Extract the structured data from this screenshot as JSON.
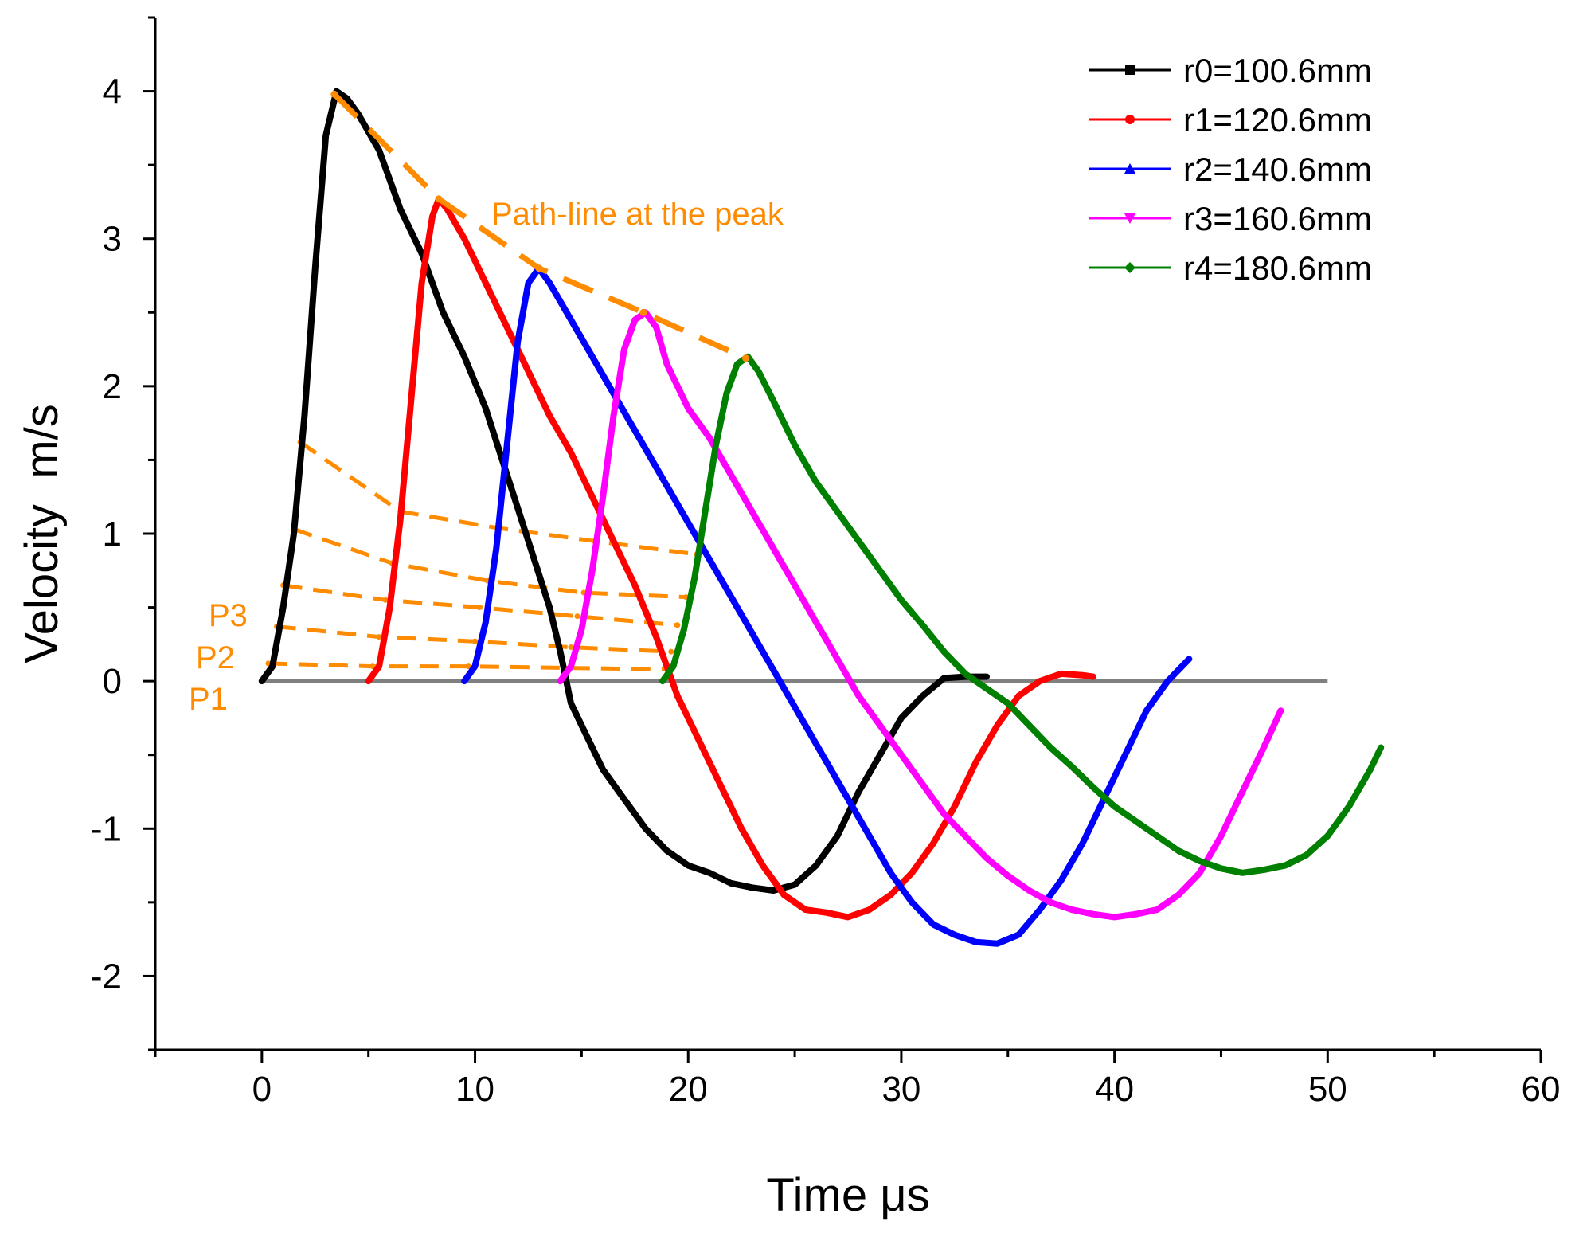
{
  "chart_data": {
    "type": "line",
    "title": "",
    "xlabel": "Time μs",
    "ylabel": "Velocity  m/s",
    "xlim": [
      -5,
      60
    ],
    "ylim": [
      -2.5,
      4.5
    ],
    "x_ticks": [
      0,
      10,
      20,
      30,
      40,
      50,
      60
    ],
    "y_ticks": [
      -2,
      -1,
      0,
      1,
      2,
      3,
      4
    ],
    "x_tick_labels": [
      "0",
      "10",
      "20",
      "30",
      "40",
      "50",
      "60"
    ],
    "y_tick_labels": [
      "-2",
      "-1",
      "0",
      "1",
      "2",
      "3",
      "4"
    ],
    "legend_position": "top-right",
    "series": [
      {
        "name": "r0=100.6mm",
        "color": "#000000",
        "marker": "square",
        "points": [
          [
            0,
            0
          ],
          [
            0.5,
            0.1
          ],
          [
            1.0,
            0.5
          ],
          [
            1.5,
            1.0
          ],
          [
            2.0,
            1.8
          ],
          [
            2.5,
            2.8
          ],
          [
            3.0,
            3.7
          ],
          [
            3.5,
            4.0
          ],
          [
            4.0,
            3.95
          ],
          [
            4.5,
            3.85
          ],
          [
            5.5,
            3.6
          ],
          [
            6.5,
            3.2
          ],
          [
            7.5,
            2.9
          ],
          [
            8.5,
            2.5
          ],
          [
            9.5,
            2.2
          ],
          [
            10.5,
            1.85
          ],
          [
            11.5,
            1.4
          ],
          [
            12.5,
            0.95
          ],
          [
            13.5,
            0.5
          ],
          [
            14.0,
            0.2
          ],
          [
            14.5,
            -0.15
          ],
          [
            15.0,
            -0.3
          ],
          [
            16.0,
            -0.6
          ],
          [
            17.0,
            -0.8
          ],
          [
            18.0,
            -1.0
          ],
          [
            19.0,
            -1.15
          ],
          [
            20.0,
            -1.25
          ],
          [
            21.0,
            -1.3
          ],
          [
            22.0,
            -1.37
          ],
          [
            23.0,
            -1.4
          ],
          [
            24.0,
            -1.42
          ],
          [
            25.0,
            -1.38
          ],
          [
            26.0,
            -1.25
          ],
          [
            27.0,
            -1.05
          ],
          [
            28.0,
            -0.75
          ],
          [
            29.0,
            -0.5
          ],
          [
            30.0,
            -0.25
          ],
          [
            31.0,
            -0.1
          ],
          [
            32.0,
            0.02
          ],
          [
            33.0,
            0.03
          ],
          [
            34.0,
            0.03
          ]
        ]
      },
      {
        "name": "r1=120.6mm",
        "color": "#ff0000",
        "marker": "circle",
        "points": [
          [
            5,
            0
          ],
          [
            5.5,
            0.1
          ],
          [
            6.0,
            0.5
          ],
          [
            6.5,
            1.1
          ],
          [
            7.0,
            1.9
          ],
          [
            7.5,
            2.7
          ],
          [
            8.0,
            3.15
          ],
          [
            8.3,
            3.27
          ],
          [
            8.7,
            3.2
          ],
          [
            9.5,
            3.0
          ],
          [
            10.5,
            2.7
          ],
          [
            11.5,
            2.4
          ],
          [
            12.5,
            2.1
          ],
          [
            13.5,
            1.8
          ],
          [
            14.5,
            1.55
          ],
          [
            15.5,
            1.25
          ],
          [
            16.5,
            0.95
          ],
          [
            17.5,
            0.65
          ],
          [
            18.5,
            0.3
          ],
          [
            19.5,
            -0.1
          ],
          [
            20.5,
            -0.4
          ],
          [
            21.5,
            -0.7
          ],
          [
            22.5,
            -1.0
          ],
          [
            23.5,
            -1.25
          ],
          [
            24.5,
            -1.45
          ],
          [
            25.5,
            -1.55
          ],
          [
            26.5,
            -1.57
          ],
          [
            27.5,
            -1.6
          ],
          [
            28.5,
            -1.55
          ],
          [
            29.5,
            -1.45
          ],
          [
            30.5,
            -1.3
          ],
          [
            31.5,
            -1.1
          ],
          [
            32.5,
            -0.85
          ],
          [
            33.5,
            -0.55
          ],
          [
            34.5,
            -0.3
          ],
          [
            35.5,
            -0.1
          ],
          [
            36.5,
            0.0
          ],
          [
            37.5,
            0.05
          ],
          [
            38.5,
            0.04
          ],
          [
            39.0,
            0.03
          ]
        ]
      },
      {
        "name": "r2=140.6mm",
        "color": "#0000ff",
        "marker": "triangle",
        "points": [
          [
            9.5,
            0
          ],
          [
            10.0,
            0.1
          ],
          [
            10.5,
            0.4
          ],
          [
            11.0,
            0.9
          ],
          [
            11.5,
            1.6
          ],
          [
            12.0,
            2.3
          ],
          [
            12.5,
            2.7
          ],
          [
            13.0,
            2.8
          ],
          [
            13.5,
            2.7
          ],
          [
            14.5,
            2.45
          ],
          [
            15.5,
            2.2
          ],
          [
            16.5,
            1.95
          ],
          [
            17.5,
            1.7
          ],
          [
            18.5,
            1.45
          ],
          [
            19.5,
            1.2
          ],
          [
            20.5,
            0.95
          ],
          [
            21.5,
            0.7
          ],
          [
            22.5,
            0.45
          ],
          [
            23.5,
            0.2
          ],
          [
            24.5,
            -0.05
          ],
          [
            25.5,
            -0.3
          ],
          [
            26.5,
            -0.55
          ],
          [
            27.5,
            -0.8
          ],
          [
            28.5,
            -1.05
          ],
          [
            29.5,
            -1.3
          ],
          [
            30.5,
            -1.5
          ],
          [
            31.5,
            -1.65
          ],
          [
            32.5,
            -1.72
          ],
          [
            33.5,
            -1.77
          ],
          [
            34.5,
            -1.78
          ],
          [
            35.5,
            -1.72
          ],
          [
            36.5,
            -1.55
          ],
          [
            37.5,
            -1.35
          ],
          [
            38.5,
            -1.1
          ],
          [
            39.5,
            -0.8
          ],
          [
            40.5,
            -0.5
          ],
          [
            41.5,
            -0.2
          ],
          [
            42.5,
            0.0
          ],
          [
            43.5,
            0.15
          ]
        ]
      },
      {
        "name": "r3=160.6mm",
        "color": "#ff00ff",
        "marker": "inverted-triangle",
        "points": [
          [
            14.0,
            0
          ],
          [
            14.5,
            0.1
          ],
          [
            15.0,
            0.35
          ],
          [
            15.5,
            0.75
          ],
          [
            16.0,
            1.25
          ],
          [
            16.5,
            1.8
          ],
          [
            17.0,
            2.25
          ],
          [
            17.5,
            2.45
          ],
          [
            18.0,
            2.5
          ],
          [
            18.5,
            2.4
          ],
          [
            19.0,
            2.15
          ],
          [
            20.0,
            1.85
          ],
          [
            21.0,
            1.65
          ],
          [
            22.0,
            1.4
          ],
          [
            23.0,
            1.15
          ],
          [
            24.0,
            0.9
          ],
          [
            25.0,
            0.65
          ],
          [
            26.0,
            0.4
          ],
          [
            27.0,
            0.15
          ],
          [
            28.0,
            -0.1
          ],
          [
            29.0,
            -0.3
          ],
          [
            30.0,
            -0.5
          ],
          [
            31.0,
            -0.7
          ],
          [
            32.0,
            -0.9
          ],
          [
            33.0,
            -1.05
          ],
          [
            34.0,
            -1.2
          ],
          [
            35.0,
            -1.32
          ],
          [
            36.0,
            -1.42
          ],
          [
            37.0,
            -1.5
          ],
          [
            38.0,
            -1.55
          ],
          [
            39.0,
            -1.58
          ],
          [
            40.0,
            -1.6
          ],
          [
            41.0,
            -1.58
          ],
          [
            42.0,
            -1.55
          ],
          [
            43.0,
            -1.45
          ],
          [
            44.0,
            -1.3
          ],
          [
            45.0,
            -1.05
          ],
          [
            46.0,
            -0.75
          ],
          [
            47.0,
            -0.45
          ],
          [
            47.8,
            -0.2
          ]
        ]
      },
      {
        "name": "r4=180.6mm",
        "color": "#008000",
        "marker": "diamond",
        "points": [
          [
            18.8,
            0
          ],
          [
            19.3,
            0.1
          ],
          [
            19.8,
            0.35
          ],
          [
            20.3,
            0.7
          ],
          [
            20.8,
            1.15
          ],
          [
            21.3,
            1.6
          ],
          [
            21.8,
            1.95
          ],
          [
            22.3,
            2.15
          ],
          [
            22.8,
            2.2
          ],
          [
            23.3,
            2.1
          ],
          [
            24.0,
            1.9
          ],
          [
            25.0,
            1.6
          ],
          [
            26.0,
            1.35
          ],
          [
            27.0,
            1.15
          ],
          [
            28.0,
            0.95
          ],
          [
            29.0,
            0.75
          ],
          [
            30.0,
            0.55
          ],
          [
            31.0,
            0.38
          ],
          [
            32.0,
            0.2
          ],
          [
            33.0,
            0.05
          ],
          [
            34.0,
            -0.05
          ],
          [
            35.0,
            -0.15
          ],
          [
            36.0,
            -0.3
          ],
          [
            37.0,
            -0.45
          ],
          [
            38.0,
            -0.58
          ],
          [
            39.0,
            -0.72
          ],
          [
            40.0,
            -0.85
          ],
          [
            41.0,
            -0.95
          ],
          [
            42.0,
            -1.05
          ],
          [
            43.0,
            -1.15
          ],
          [
            44.0,
            -1.22
          ],
          [
            45.0,
            -1.27
          ],
          [
            46.0,
            -1.3
          ],
          [
            47.0,
            -1.28
          ],
          [
            48.0,
            -1.25
          ],
          [
            49.0,
            -1.18
          ],
          [
            50.0,
            -1.05
          ],
          [
            51.0,
            -0.85
          ],
          [
            52.0,
            -0.6
          ],
          [
            52.5,
            -0.45
          ]
        ]
      }
    ],
    "baseline": {
      "color": "#808080",
      "y": 0,
      "x_range": [
        0,
        50
      ]
    },
    "peak_path": {
      "label": "Path-line at the peak",
      "color": "#ff8c00",
      "points": [
        [
          3.4,
          3.98
        ],
        [
          8.3,
          3.27
        ],
        [
          13.0,
          2.8
        ],
        [
          17.9,
          2.5
        ],
        [
          22.7,
          2.19
        ]
      ]
    },
    "iso_lines": {
      "color": "#ff8c00",
      "lines": [
        {
          "points": [
            [
              0,
              0
            ],
            [
              5,
              0
            ],
            [
              9.5,
              0
            ],
            [
              14,
              0
            ],
            [
              18.8,
              0
            ]
          ]
        },
        {
          "label": "P1",
          "points": [
            [
              0.3,
              0.12
            ],
            [
              5.2,
              0.1
            ],
            [
              9.7,
              0.1
            ],
            [
              14.2,
              0.09
            ],
            [
              19.0,
              0.08
            ]
          ]
        },
        {
          "label": "P2",
          "points": [
            [
              0.7,
              0.37
            ],
            [
              5.5,
              0.3
            ],
            [
              10.0,
              0.27
            ],
            [
              14.5,
              0.23
            ],
            [
              19.2,
              0.2
            ]
          ]
        },
        {
          "label": "P3",
          "points": [
            [
              1.0,
              0.65
            ],
            [
              5.8,
              0.55
            ],
            [
              10.2,
              0.5
            ],
            [
              14.8,
              0.44
            ],
            [
              19.5,
              0.38
            ]
          ]
        },
        {
          "points": [
            [
              1.5,
              1.03
            ],
            [
              6.1,
              0.8
            ],
            [
              10.6,
              0.68
            ],
            [
              15.1,
              0.6
            ],
            [
              19.9,
              0.57
            ]
          ]
        },
        {
          "points": [
            [
              1.8,
              1.62
            ],
            [
              6.5,
              1.15
            ],
            [
              11.0,
              1.04
            ],
            [
              15.6,
              0.95
            ],
            [
              20.4,
              0.86
            ]
          ]
        }
      ]
    }
  }
}
